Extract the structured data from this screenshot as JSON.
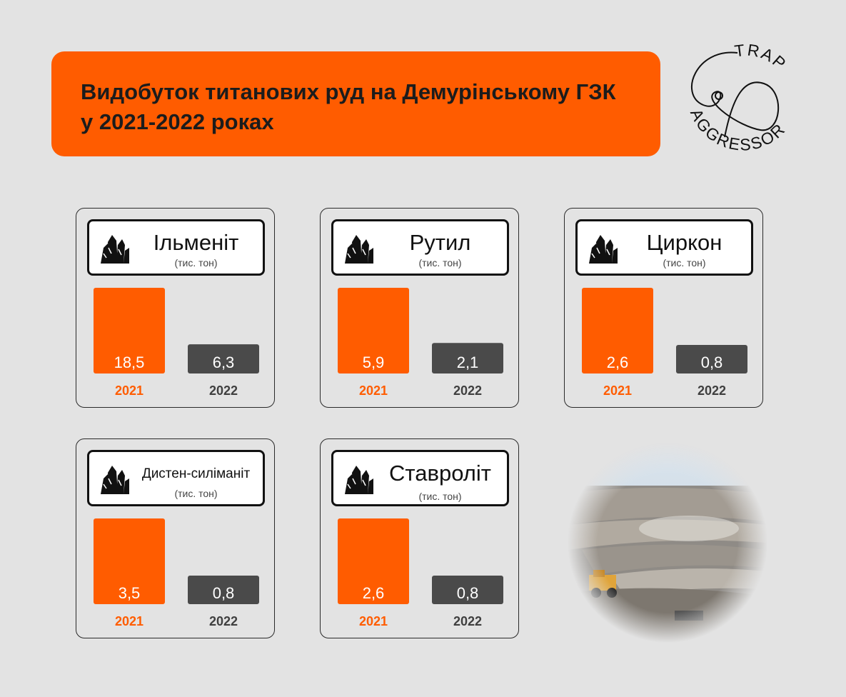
{
  "header": {
    "title": "Видобуток титанових руд на Демурінському ГЗК\nу 2021-2022 роках"
  },
  "logo": {
    "text_top": "TRAP",
    "text_bottom": "AGGRESSOR"
  },
  "colors": {
    "accent": "#ff5c00",
    "dark_bar": "#4a4a4a",
    "background": "#e3e3e3",
    "year_2022": "#3f3f3f"
  },
  "photo": {
    "icon": "open-pit-mine-photo"
  },
  "chart_data": [
    {
      "type": "bar",
      "title": "Ільменіт",
      "ylabel": "(тис. тон)",
      "categories": [
        "2021",
        "2022"
      ],
      "values": [
        18.5,
        6.3
      ],
      "value_labels": [
        "18,5",
        "6,3"
      ]
    },
    {
      "type": "bar",
      "title": "Рутил",
      "ylabel": "(тис. тон)",
      "categories": [
        "2021",
        "2022"
      ],
      "values": [
        5.9,
        2.1
      ],
      "value_labels": [
        "5,9",
        "2,1"
      ]
    },
    {
      "type": "bar",
      "title": "Циркон",
      "ylabel": "(тис. тон)",
      "categories": [
        "2021",
        "2022"
      ],
      "values": [
        2.6,
        0.8
      ],
      "value_labels": [
        "2,6",
        "0,8"
      ]
    },
    {
      "type": "bar",
      "title": "Дистен-силіманіт",
      "ylabel": "(тис. тон)",
      "categories": [
        "2021",
        "2022"
      ],
      "values": [
        3.5,
        0.8
      ],
      "value_labels": [
        "3,5",
        "0,8"
      ]
    },
    {
      "type": "bar",
      "title": "Ставроліт",
      "ylabel": "(тис. тон)",
      "categories": [
        "2021",
        "2022"
      ],
      "values": [
        2.6,
        0.8
      ],
      "value_labels": [
        "2,6",
        "0,8"
      ]
    }
  ]
}
